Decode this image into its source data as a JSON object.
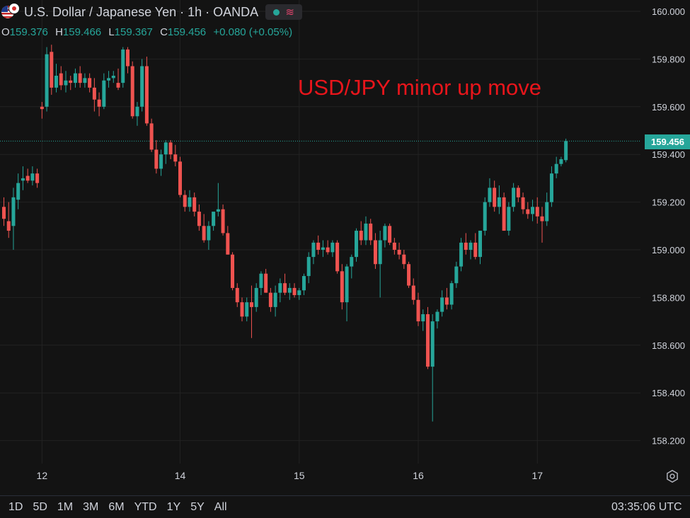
{
  "header": {
    "title": "U.S. Dollar / Japanese Yen · 1h · OANDA",
    "ohlc": [
      {
        "key": "O",
        "value": "159.376"
      },
      {
        "key": "H",
        "value": "159.466"
      },
      {
        "key": "L",
        "value": "159.367"
      },
      {
        "key": "C",
        "value": "159.456"
      }
    ],
    "change": "+0.080 (+0.05%)"
  },
  "annotation": "USD/JPY minor up move",
  "last_price": "159.456",
  "time_ranges": [
    "1D",
    "5D",
    "1M",
    "3M",
    "6M",
    "YTD",
    "1Y",
    "5Y",
    "All"
  ],
  "clock": "03:35:06 UTC",
  "colors": {
    "up": "#26a69a",
    "down": "#ef5350",
    "background": "#131313",
    "annotation": "#e8151b"
  },
  "icons": {
    "settings": "gear-icon",
    "status": "dot-icon",
    "indicator": "wave-icon"
  },
  "chart_data": {
    "type": "candlestick",
    "symbol": "USD/JPY",
    "interval": "1h",
    "ylim": [
      158.08,
      160.08
    ],
    "yticks": [
      "160.000",
      "159.800",
      "159.600",
      "159.400",
      "159.200",
      "159.000",
      "158.800",
      "158.600",
      "158.400",
      "158.200"
    ],
    "xticks": [
      {
        "label": "12",
        "index": 8
      },
      {
        "label": "14",
        "index": 37
      },
      {
        "label": "15",
        "index": 62
      },
      {
        "label": "16",
        "index": 87
      },
      {
        "label": "17",
        "index": 112
      }
    ],
    "candles": [
      [
        159.18,
        159.22,
        159.1,
        159.13
      ],
      [
        159.12,
        159.2,
        159.05,
        159.08
      ],
      [
        159.1,
        159.26,
        159.0,
        159.22
      ],
      [
        159.21,
        159.32,
        159.17,
        159.28
      ],
      [
        159.29,
        159.35,
        159.25,
        159.3
      ],
      [
        159.31,
        159.34,
        159.28,
        159.29
      ],
      [
        159.29,
        159.35,
        159.27,
        159.32
      ],
      [
        159.32,
        159.34,
        159.26,
        159.28
      ],
      [
        159.6,
        159.62,
        159.55,
        159.59
      ],
      [
        159.6,
        159.85,
        159.58,
        159.82
      ],
      [
        159.83,
        159.86,
        159.65,
        159.68
      ],
      [
        159.68,
        159.78,
        159.66,
        159.73
      ],
      [
        159.74,
        159.77,
        159.67,
        159.69
      ],
      [
        159.69,
        159.75,
        159.66,
        159.71
      ],
      [
        159.71,
        159.73,
        159.67,
        159.7
      ],
      [
        159.7,
        159.76,
        159.68,
        159.74
      ],
      [
        159.74,
        159.77,
        159.68,
        159.7
      ],
      [
        159.7,
        159.74,
        159.68,
        159.72
      ],
      [
        159.72,
        159.74,
        159.66,
        159.68
      ],
      [
        159.68,
        159.72,
        159.58,
        159.63
      ],
      [
        159.63,
        159.66,
        159.56,
        159.6
      ],
      [
        159.6,
        159.74,
        159.59,
        159.71
      ],
      [
        159.71,
        159.75,
        159.68,
        159.72
      ],
      [
        159.72,
        159.75,
        159.7,
        159.73
      ],
      [
        159.7,
        159.76,
        159.67,
        159.68
      ],
      [
        159.7,
        159.85,
        159.68,
        159.84
      ],
      [
        159.84,
        159.85,
        159.74,
        159.77
      ],
      [
        159.77,
        159.79,
        159.55,
        159.56
      ],
      [
        159.56,
        159.62,
        159.52,
        159.6
      ],
      [
        159.6,
        159.8,
        159.58,
        159.77
      ],
      [
        159.77,
        159.81,
        159.52,
        159.53
      ],
      [
        159.53,
        159.55,
        159.41,
        159.42
      ],
      [
        159.42,
        159.46,
        159.32,
        159.34
      ],
      [
        159.34,
        159.42,
        159.31,
        159.4
      ],
      [
        159.4,
        159.46,
        159.36,
        159.45
      ],
      [
        159.45,
        159.46,
        159.38,
        159.4
      ],
      [
        159.4,
        159.44,
        159.35,
        159.37
      ],
      [
        159.37,
        159.39,
        159.22,
        159.23
      ],
      [
        159.23,
        159.25,
        159.16,
        159.18
      ],
      [
        159.18,
        159.25,
        159.16,
        159.22
      ],
      [
        159.22,
        159.24,
        159.14,
        159.16
      ],
      [
        159.16,
        159.19,
        159.08,
        159.1
      ],
      [
        159.1,
        159.15,
        159.03,
        159.04
      ],
      [
        159.04,
        159.12,
        159.0,
        159.1
      ],
      [
        159.1,
        159.15,
        159.08,
        159.16
      ],
      [
        159.16,
        159.28,
        159.14,
        159.17
      ],
      [
        159.17,
        159.19,
        159.06,
        159.07
      ],
      [
        159.07,
        159.1,
        158.98,
        158.98
      ],
      [
        158.98,
        158.99,
        158.83,
        158.84
      ],
      [
        158.84,
        158.86,
        158.76,
        158.78
      ],
      [
        158.78,
        158.8,
        158.7,
        158.72
      ],
      [
        158.72,
        158.8,
        158.7,
        158.78
      ],
      [
        158.78,
        158.85,
        158.63,
        158.76
      ],
      [
        158.76,
        158.86,
        158.74,
        158.84
      ],
      [
        158.84,
        158.91,
        158.81,
        158.9
      ],
      [
        158.9,
        158.92,
        158.82,
        158.82
      ],
      [
        158.82,
        158.84,
        158.74,
        158.76
      ],
      [
        158.76,
        158.85,
        158.72,
        158.82
      ],
      [
        158.82,
        158.88,
        158.78,
        158.86
      ],
      [
        158.86,
        158.9,
        158.81,
        158.82
      ],
      [
        158.82,
        158.86,
        158.79,
        158.84
      ],
      [
        158.84,
        158.86,
        158.8,
        158.81
      ],
      [
        158.81,
        158.84,
        158.79,
        158.83
      ],
      [
        158.83,
        158.9,
        158.81,
        158.89
      ],
      [
        158.89,
        158.99,
        158.86,
        158.97
      ],
      [
        158.97,
        159.04,
        158.94,
        159.03
      ],
      [
        159.03,
        159.06,
        158.98,
        159.0
      ],
      [
        159.0,
        159.04,
        158.97,
        159.01
      ],
      [
        159.01,
        159.04,
        158.98,
        158.99
      ],
      [
        158.99,
        159.04,
        158.97,
        159.03
      ],
      [
        159.03,
        159.04,
        158.9,
        158.91
      ],
      [
        158.91,
        158.94,
        158.75,
        158.78
      ],
      [
        158.78,
        158.94,
        158.7,
        158.93
      ],
      [
        158.93,
        158.98,
        158.88,
        158.97
      ],
      [
        158.97,
        159.09,
        158.95,
        159.08
      ],
      [
        159.08,
        159.12,
        159.02,
        159.04
      ],
      [
        159.04,
        159.14,
        159.02,
        159.11
      ],
      [
        159.11,
        159.13,
        159.02,
        159.04
      ],
      [
        159.04,
        159.07,
        158.92,
        158.94
      ],
      [
        158.94,
        159.08,
        158.8,
        159.04
      ],
      [
        159.04,
        159.11,
        159.01,
        159.1
      ],
      [
        159.1,
        159.11,
        159.02,
        159.03
      ],
      [
        159.03,
        159.05,
        158.98,
        159.0
      ],
      [
        159.0,
        159.03,
        158.96,
        158.98
      ],
      [
        158.98,
        159.0,
        158.92,
        158.94
      ],
      [
        158.94,
        158.95,
        158.84,
        158.85
      ],
      [
        158.85,
        158.88,
        158.77,
        158.79
      ],
      [
        158.79,
        158.82,
        158.68,
        158.7
      ],
      [
        158.7,
        158.75,
        158.66,
        158.73
      ],
      [
        158.73,
        158.76,
        158.5,
        158.51
      ],
      [
        158.51,
        158.73,
        158.28,
        158.7
      ],
      [
        158.7,
        158.75,
        158.67,
        158.74
      ],
      [
        158.74,
        158.83,
        158.72,
        158.8
      ],
      [
        158.8,
        158.84,
        158.75,
        158.77
      ],
      [
        158.77,
        158.87,
        158.75,
        158.86
      ],
      [
        158.86,
        158.95,
        158.84,
        158.93
      ],
      [
        158.93,
        159.05,
        158.91,
        159.03
      ],
      [
        159.03,
        159.07,
        158.98,
        159.0
      ],
      [
        159.0,
        159.04,
        158.96,
        159.03
      ],
      [
        159.03,
        159.07,
        158.96,
        158.97
      ],
      [
        158.97,
        159.08,
        158.94,
        159.08
      ],
      [
        159.08,
        159.22,
        159.06,
        159.2
      ],
      [
        159.2,
        159.3,
        159.18,
        159.26
      ],
      [
        159.26,
        159.29,
        159.16,
        159.18
      ],
      [
        159.18,
        159.27,
        159.15,
        159.22
      ],
      [
        159.22,
        159.24,
        159.08,
        159.08
      ],
      [
        159.08,
        159.2,
        159.06,
        159.18
      ],
      [
        159.18,
        159.28,
        159.16,
        159.26
      ],
      [
        159.26,
        159.27,
        159.2,
        159.22
      ],
      [
        159.22,
        159.24,
        159.15,
        159.17
      ],
      [
        159.17,
        159.2,
        159.13,
        159.15
      ],
      [
        159.15,
        159.21,
        159.12,
        159.18
      ],
      [
        159.18,
        159.22,
        159.11,
        159.14
      ],
      [
        159.14,
        159.18,
        159.03,
        159.12
      ],
      [
        159.12,
        159.24,
        159.1,
        159.2
      ],
      [
        159.2,
        159.35,
        159.18,
        159.32
      ],
      [
        159.32,
        159.39,
        159.3,
        159.36
      ],
      [
        159.36,
        159.39,
        159.35,
        159.38
      ],
      [
        159.376,
        159.466,
        159.367,
        159.456
      ]
    ]
  }
}
